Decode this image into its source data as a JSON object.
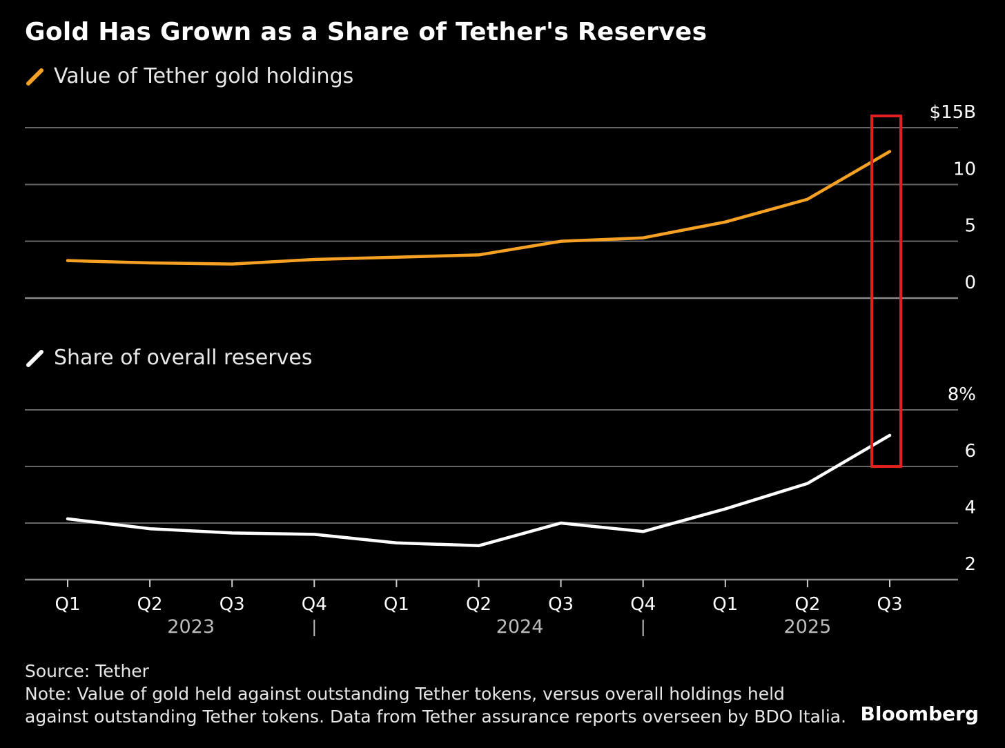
{
  "title": "Gold Has Grown as a Share of Tether's Reserves",
  "source": "Source: Tether",
  "note_line1": "Note: Value of gold held against outstanding Tether tokens, versus overall holdings held",
  "note_line2": "against outstanding Tether tokens. Data from Tether assurance reports overseen by BDO Italia.",
  "brand": "Bloomberg",
  "colors": {
    "gold": "#f7a124",
    "share": "#ffffff",
    "grid": "#666666",
    "highlight": "#e02020"
  },
  "chart_data": [
    {
      "type": "line",
      "legend": "Value of Tether gold holdings",
      "categories": [
        "Q1",
        "Q2",
        "Q3",
        "Q4",
        "Q1",
        "Q2",
        "Q3",
        "Q4",
        "Q1",
        "Q2",
        "Q3"
      ],
      "years": [
        {
          "label": "2023",
          "quarters": [
            0,
            3
          ]
        },
        {
          "label": "2024",
          "quarters": [
            4,
            7
          ]
        },
        {
          "label": "2025",
          "quarters": [
            8,
            10
          ]
        }
      ],
      "series": [
        {
          "name": "Value of Tether gold holdings",
          "values": [
            3.3,
            3.1,
            3.0,
            3.4,
            3.6,
            3.8,
            5.0,
            5.3,
            6.7,
            8.7,
            12.9
          ]
        }
      ],
      "ylim": [
        0,
        15
      ],
      "yticks": [
        "0",
        "5",
        "10",
        "$15B"
      ],
      "ytick_values": [
        0,
        5,
        10,
        15
      ],
      "highlight": "Q3 2025"
    },
    {
      "type": "line",
      "legend": "Share of overall reserves",
      "categories": [
        "Q1",
        "Q2",
        "Q3",
        "Q4",
        "Q1",
        "Q2",
        "Q3",
        "Q4",
        "Q1",
        "Q2",
        "Q3"
      ],
      "series": [
        {
          "name": "Share of overall reserves",
          "values": [
            4.15,
            3.8,
            3.65,
            3.6,
            3.3,
            3.2,
            4.0,
            3.7,
            4.5,
            5.4,
            7.1
          ]
        }
      ],
      "ylim": [
        2,
        8
      ],
      "yticks": [
        "2",
        "4",
        "6",
        "8%"
      ],
      "ytick_values": [
        2,
        4,
        6,
        8
      ]
    }
  ]
}
